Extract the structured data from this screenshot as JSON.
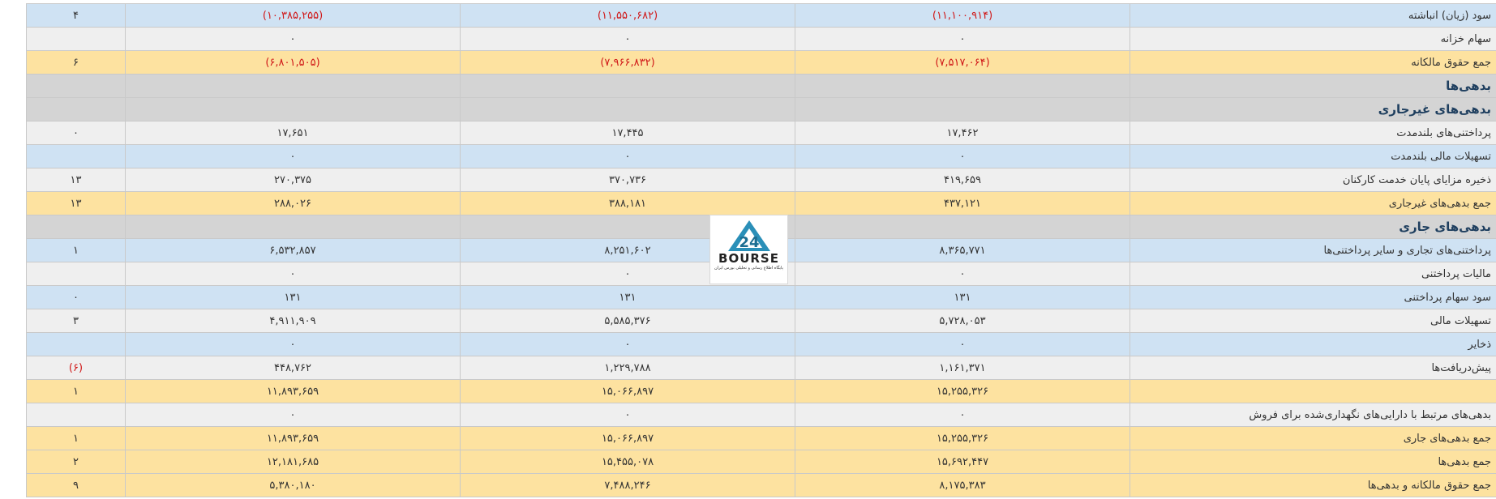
{
  "rows": [
    {
      "label": "سود (زیان) انباشته",
      "v1": "(۱۱,۱۰۰,۹۱۴)",
      "v2": "(۱۱,۵۵۰,۶۸۲)",
      "v3": "(۱۰,۳۸۵,۲۵۵)",
      "change": "۴",
      "style": "blue",
      "neg": true
    },
    {
      "label": "سهام خزانه",
      "v1": "۰",
      "v2": "۰",
      "v3": "۰",
      "change": "",
      "style": "gray",
      "neg": false
    },
    {
      "label": "جمع حقوق مالکانه",
      "v1": "(۷,۵۱۷,۰۶۴)",
      "v2": "(۷,۹۶۶,۸۳۲)",
      "v3": "(۶,۸۰۱,۵۰۵)",
      "change": "۶",
      "style": "total",
      "neg": true
    },
    {
      "label": "بدهی‌ها",
      "v1": "",
      "v2": "",
      "v3": "",
      "change": "",
      "style": "section",
      "neg": false
    },
    {
      "label": "بدهی‌های غیرجاری",
      "v1": "",
      "v2": "",
      "v3": "",
      "change": "",
      "style": "section",
      "neg": false
    },
    {
      "label": "پرداختنی‌های بلندمدت",
      "v1": "۱۷,۴۶۲",
      "v2": "۱۷,۴۴۵",
      "v3": "۱۷,۶۵۱",
      "change": "۰",
      "style": "gray",
      "neg": false
    },
    {
      "label": "تسهیلات مالی بلندمدت",
      "v1": "۰",
      "v2": "۰",
      "v3": "۰",
      "change": "",
      "style": "blue",
      "neg": false
    },
    {
      "label": "ذخیره مزایای پایان خدمت کارکنان",
      "v1": "۴۱۹,۶۵۹",
      "v2": "۳۷۰,۷۳۶",
      "v3": "۲۷۰,۳۷۵",
      "change": "۱۳",
      "style": "gray",
      "neg": false
    },
    {
      "label": "جمع بدهی‌های غیرجاری",
      "v1": "۴۳۷,۱۲۱",
      "v2": "۳۸۸,۱۸۱",
      "v3": "۲۸۸,۰۲۶",
      "change": "۱۳",
      "style": "total",
      "neg": false
    },
    {
      "label": "بدهی‌های جاری",
      "v1": "",
      "v2": "",
      "v3": "",
      "change": "",
      "style": "section",
      "neg": false
    },
    {
      "label": "پرداختنی‌های تجاری و سایر پرداختنی‌ها",
      "v1": "۸,۳۶۵,۷۷۱",
      "v2": "۸,۲۵۱,۶۰۲",
      "v3": "۶,۵۳۲,۸۵۷",
      "change": "۱",
      "style": "blue",
      "neg": false
    },
    {
      "label": "مالیات پرداختنی",
      "v1": "۰",
      "v2": "۰",
      "v3": "۰",
      "change": "",
      "style": "gray",
      "neg": false
    },
    {
      "label": "سود سهام پرداختنی",
      "v1": "۱۳۱",
      "v2": "۱۳۱",
      "v3": "۱۳۱",
      "change": "۰",
      "style": "blue",
      "neg": false
    },
    {
      "label": "تسهیلات مالی",
      "v1": "۵,۷۲۸,۰۵۳",
      "v2": "۵,۵۸۵,۳۷۶",
      "v3": "۴,۹۱۱,۹۰۹",
      "change": "۳",
      "style": "gray",
      "neg": false
    },
    {
      "label": "ذخایر",
      "v1": "۰",
      "v2": "۰",
      "v3": "۰",
      "change": "",
      "style": "blue",
      "neg": false
    },
    {
      "label": "پیش‌دریافت‌ها",
      "v1": "۱,۱۶۱,۳۷۱",
      "v2": "۱,۲۲۹,۷۸۸",
      "v3": "۴۴۸,۷۶۲",
      "change": "(۶)",
      "style": "gray",
      "neg": false,
      "change_neg": true
    },
    {
      "label": "",
      "v1": "۱۵,۲۵۵,۳۲۶",
      "v2": "۱۵,۰۶۶,۸۹۷",
      "v3": "۱۱,۸۹۳,۶۵۹",
      "change": "۱",
      "style": "total",
      "neg": false
    },
    {
      "label": "بدهی‌های مرتبط با دارایی‌های نگهداری‌شده برای فروش",
      "v1": "۰",
      "v2": "۰",
      "v3": "۰",
      "change": "",
      "style": "gray",
      "neg": false
    },
    {
      "label": "جمع بدهی‌های جاری",
      "v1": "۱۵,۲۵۵,۳۲۶",
      "v2": "۱۵,۰۶۶,۸۹۷",
      "v3": "۱۱,۸۹۳,۶۵۹",
      "change": "۱",
      "style": "total",
      "neg": false
    },
    {
      "label": "جمع بدهی‌ها",
      "v1": "۱۵,۶۹۲,۴۴۷",
      "v2": "۱۵,۴۵۵,۰۷۸",
      "v3": "۱۲,۱۸۱,۶۸۵",
      "change": "۲",
      "style": "total",
      "neg": false
    },
    {
      "label": "جمع حقوق مالکانه و بدهی‌ها",
      "v1": "۸,۱۷۵,۳۸۳",
      "v2": "۷,۴۸۸,۲۴۶",
      "v3": "۵,۳۸۰,۱۸۰",
      "change": "۹",
      "style": "total",
      "neg": false
    }
  ],
  "logo": {
    "word": "BOURSE",
    "mark": "24",
    "subtitle": "پایگاه اطلاع رسانی و تحلیلی بورس ایران"
  },
  "colors": {
    "row_blue": "#cfe2f3",
    "row_gray": "#efefef",
    "row_total": "#fde2a0",
    "row_section": "#d4d4d4",
    "negative": "#d01818",
    "logo_accent": "#2a8fb8"
  }
}
